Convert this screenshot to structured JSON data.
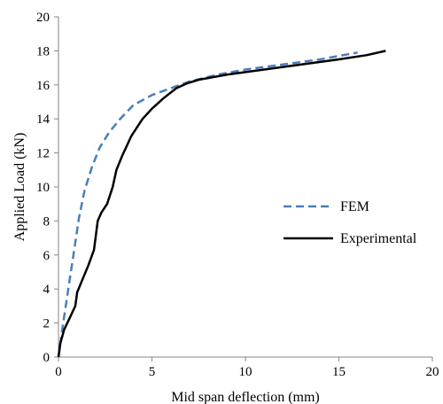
{
  "chart_data": {
    "type": "line",
    "title": "",
    "xlabel": "Mid span deflection (mm)",
    "ylabel": "Applied Load (kN)",
    "xlim": [
      0,
      20
    ],
    "ylim": [
      0,
      20
    ],
    "xticks": [
      0,
      5,
      10,
      15,
      20
    ],
    "yticks": [
      0,
      2,
      4,
      6,
      8,
      10,
      12,
      14,
      16,
      18,
      20
    ],
    "grid": false,
    "legend_position": "right-middle",
    "series": [
      {
        "name": "FEM",
        "color": "#4a7ebb",
        "style": "dashed",
        "x": [
          0,
          0.2,
          0.5,
          0.8,
          1.1,
          1.4,
          1.8,
          2.2,
          2.7,
          3.3,
          4.0,
          5.0,
          6.0,
          7.0,
          8.5,
          10.0,
          12.0,
          14.0,
          15.5,
          16.0
        ],
        "y": [
          0,
          1.6,
          3.8,
          6.0,
          8.2,
          9.8,
          11.2,
          12.3,
          13.2,
          14.0,
          14.8,
          15.4,
          15.8,
          16.2,
          16.6,
          16.9,
          17.2,
          17.5,
          17.8,
          17.9
        ]
      },
      {
        "name": "Experimental",
        "color": "#000000",
        "style": "solid",
        "x": [
          0,
          0.1,
          0.3,
          0.6,
          0.9,
          1.0,
          1.3,
          1.6,
          1.9,
          2.1,
          2.3,
          2.6,
          2.9,
          3.1,
          3.4,
          3.9,
          4.5,
          5.0,
          5.6,
          6.3,
          6.9,
          7.5,
          9.0,
          11.0,
          13.0,
          15.0,
          16.5,
          17.5
        ],
        "y": [
          0,
          0.8,
          1.6,
          2.3,
          3.0,
          3.8,
          4.6,
          5.4,
          6.3,
          8.0,
          8.5,
          9.0,
          10.0,
          11.0,
          11.8,
          13.0,
          14.0,
          14.6,
          15.2,
          15.8,
          16.1,
          16.3,
          16.6,
          16.9,
          17.2,
          17.5,
          17.75,
          18.0
        ]
      }
    ]
  }
}
